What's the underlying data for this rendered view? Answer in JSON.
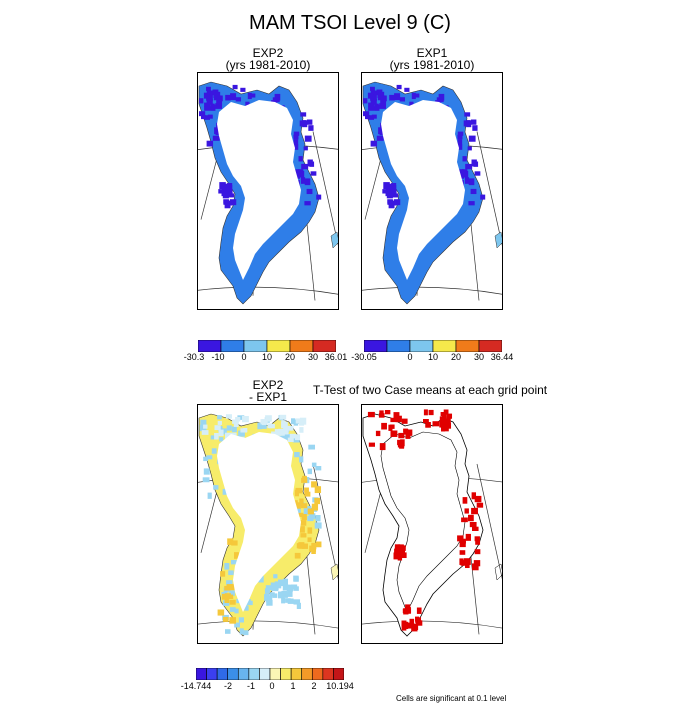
{
  "figure": {
    "title": "MAM TSOI Level 9 (C)",
    "footer_note": "Cells are significant at 0.1 level"
  },
  "panels": [
    {
      "id": "exp2",
      "title_line1": "EXP2",
      "title_line2": "(yrs 1981-2010)"
    },
    {
      "id": "exp1",
      "title_line1": "EXP1",
      "title_line2": "(yrs 1981-2010)"
    },
    {
      "id": "diff",
      "title_line1": "EXP2",
      "title_line2": "- EXP1"
    },
    {
      "id": "ttest",
      "title_line1": "T-Test of two Case means at each grid point",
      "title_line2": ""
    }
  ],
  "colorbars": [
    {
      "id": "exp2",
      "colors": [
        "#3a16e0",
        "#2f7ee8",
        "#7dc6ee",
        "#f5e94b",
        "#f07b1a",
        "#d52a22"
      ],
      "labels": [
        "-30.3",
        "-10",
        "0",
        "10",
        "20",
        "30",
        "36.01"
      ]
    },
    {
      "id": "exp1",
      "colors": [
        "#3a16e0",
        "#2f7ee8",
        "#7dc6ee",
        "#f5e94b",
        "#f07b1a",
        "#d52a22"
      ],
      "labels": [
        "-30.05",
        "0",
        "10",
        "20",
        "30",
        "36.44"
      ]
    },
    {
      "id": "diff",
      "colors": [
        "#3a16e0",
        "#3b3ff0",
        "#2f6ae8",
        "#3b8fe8",
        "#68b4ef",
        "#9ad6f2",
        "#d6eef8",
        "#fbf6b5",
        "#f7ec6a",
        "#f5c83b",
        "#f39a28",
        "#ee6a1e",
        "#dd3520",
        "#c41518"
      ],
      "labels": [
        "-14.744",
        "-2",
        "-1",
        "0",
        "1",
        "2",
        "10.194"
      ]
    }
  ],
  "colors": {
    "exp_fill": "#2f7ee8",
    "exp_edge": "#3a16e0",
    "diff_fill": "#f7ec6a",
    "diff_alt": "#9ad6f2",
    "significant": "#e00000"
  }
}
